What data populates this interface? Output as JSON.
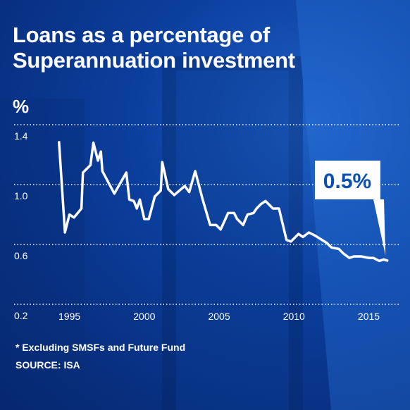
{
  "chart_data": {
    "type": "line",
    "title": "Loans as a percentage of Superannuation investment",
    "y_label": "%",
    "annotation": "0.5%",
    "footnote": "* Excluding SMSFs and Future Fund",
    "source": "SOURCE: ISA",
    "color": "#ffffff",
    "x": [
      1994.3,
      1994.7,
      1995.0,
      1995.3,
      1995.8,
      1995.9,
      1996.4,
      1996.6,
      1996.9,
      1997.1,
      1997.2,
      1998.0,
      1998.8,
      1999.0,
      1999.3,
      1999.5,
      1999.7,
      2000.0,
      2000.3,
      2000.7,
      2001.1,
      2001.2,
      2001.6,
      2002.0,
      2002.7,
      2003.0,
      2003.4,
      2003.9,
      2004.4,
      2004.8,
      2005.1,
      2005.6,
      2006.0,
      2006.2,
      2006.6,
      2006.9,
      2007.3,
      2007.5,
      2007.8,
      2008.1,
      2008.6,
      2009.0,
      2009.5,
      2009.8,
      2010.3,
      2010.6,
      2011.0,
      2011.4,
      2012.2,
      2012.5,
      2013.0,
      2013.3,
      2013.7,
      2014.0,
      2014.5,
      2015.0,
      2015.3,
      2015.7,
      2016.0,
      2016.3
    ],
    "values": [
      1.29,
      0.68,
      0.8,
      0.78,
      0.84,
      1.08,
      1.13,
      1.28,
      1.16,
      1.22,
      1.09,
      0.94,
      1.08,
      0.9,
      0.89,
      0.84,
      0.9,
      0.77,
      0.77,
      0.92,
      0.96,
      1.15,
      0.97,
      0.93,
      0.99,
      0.95,
      1.09,
      0.9,
      0.73,
      0.73,
      0.7,
      0.81,
      0.81,
      0.77,
      0.73,
      0.8,
      0.81,
      0.84,
      0.87,
      0.89,
      0.84,
      0.84,
      0.63,
      0.62,
      0.67,
      0.65,
      0.68,
      0.66,
      0.61,
      0.58,
      0.57,
      0.54,
      0.51,
      0.52,
      0.52,
      0.51,
      0.51,
      0.49,
      0.5,
      0.49
    ],
    "xlim": [
      1991.3,
      2017.0
    ],
    "xticks": [
      1995,
      2000,
      2005,
      2010,
      2015
    ],
    "ylim": [
      0.2,
      1.4
    ],
    "yticks": [
      1.4,
      {
        "value": 1.0,
        "label": "1.0"
      },
      0.6,
      0.2
    ],
    "grid": true
  }
}
